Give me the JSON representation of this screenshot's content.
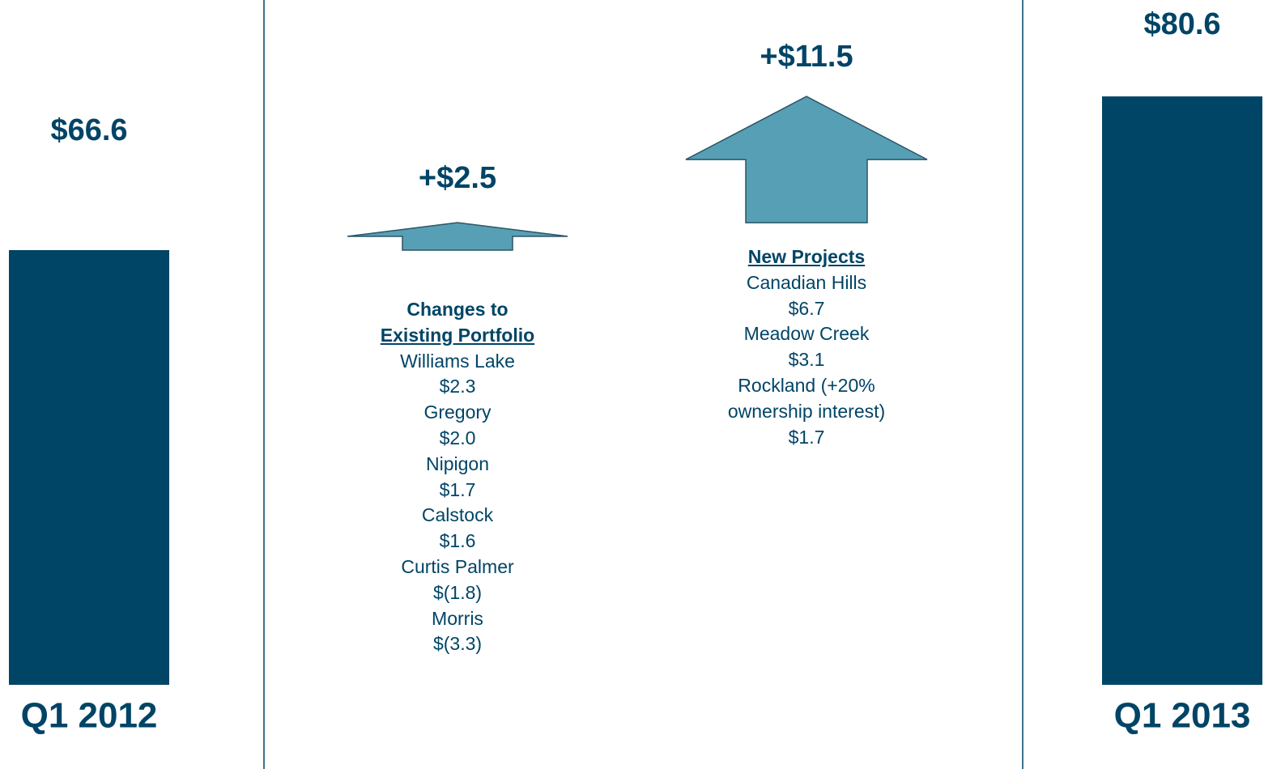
{
  "chart_data": {
    "type": "waterfall",
    "categories": [
      "Q1 2012",
      null,
      null,
      "Q1 2013"
    ],
    "values": [
      66.6,
      2.5,
      11.5,
      80.6
    ],
    "value_labels": [
      "$66.6",
      "+$2.5",
      "+$11.5",
      "$80.6"
    ],
    "color": "#004466",
    "arrow_color": "#579fb5",
    "ylim": [
      27,
      84
    ],
    "details": [
      {
        "heading": "Changes to",
        "subheading": "Existing Portfolio",
        "items": [
          {
            "name": "Williams Lake",
            "value": "$2.3"
          },
          {
            "name": "Gregory",
            "value": "$2.0"
          },
          {
            "name": "Nipigon",
            "value": "$1.7"
          },
          {
            "name": "Calstock",
            "value": "$1.6"
          },
          {
            "name": "Curtis Palmer",
            "value": "$(1.8)"
          },
          {
            "name": "Morris",
            "value": "$(3.3)"
          }
        ]
      },
      {
        "subheading": "New Projects",
        "items": [
          {
            "name": "Canadian Hills",
            "value": "$6.7"
          },
          {
            "name": "Meadow Creek",
            "value": "$3.1"
          },
          {
            "name": "Rockland (+20% ownership interest)",
            "value": "$1.7"
          }
        ]
      }
    ]
  }
}
